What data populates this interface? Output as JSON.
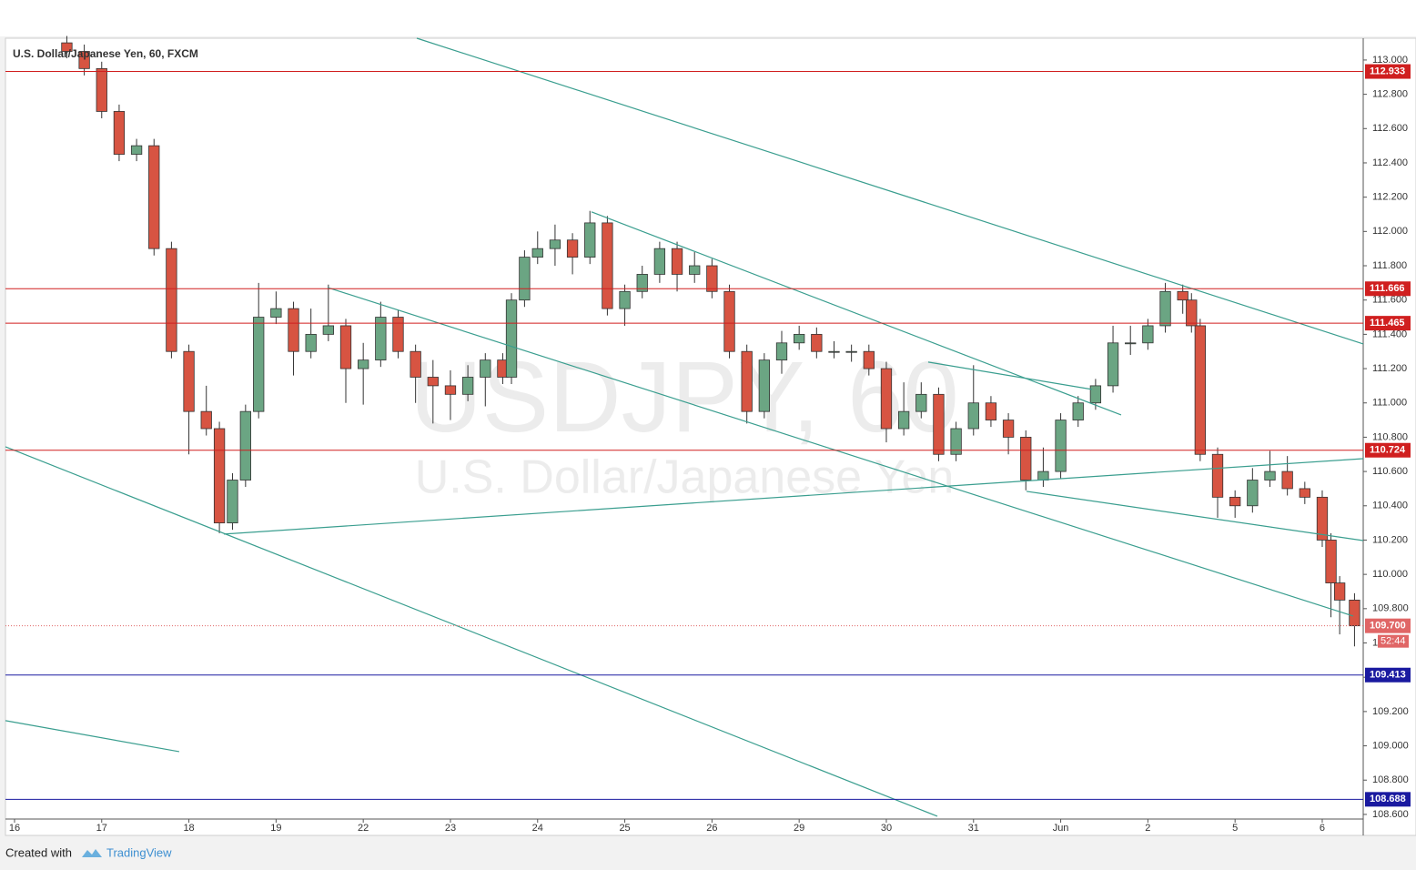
{
  "chart_data": {
    "type": "candlestick",
    "title": "U.S. Dollar/Japanese Yen, 60, FXCM",
    "watermark": [
      "USDJPY, 60",
      "U.S. Dollar/Japanese Yen"
    ],
    "up_color": "#6ba583",
    "down_color": "#d75442",
    "trend_color": "#3a9e8f",
    "xlim": [
      -0.104,
      15.47
    ],
    "xticks": [
      {
        "value": 0,
        "label": "16"
      },
      {
        "value": 1,
        "label": "17"
      },
      {
        "value": 2,
        "label": "18"
      },
      {
        "value": 3,
        "label": "19"
      },
      {
        "value": 4,
        "label": "22"
      },
      {
        "value": 5,
        "label": "23"
      },
      {
        "value": 6,
        "label": "24"
      },
      {
        "value": 7,
        "label": "25"
      },
      {
        "value": 8,
        "label": "26"
      },
      {
        "value": 9,
        "label": "29"
      },
      {
        "value": 10,
        "label": "30"
      },
      {
        "value": 11,
        "label": "31"
      },
      {
        "value": 12,
        "label": "Jun"
      },
      {
        "value": 13,
        "label": "2"
      },
      {
        "value": 14,
        "label": "5"
      },
      {
        "value": 15,
        "label": "6"
      }
    ],
    "ylim": [
      108.573,
      113.127
    ],
    "yticks": [
      {
        "value": 108.6,
        "label": "108.600"
      },
      {
        "value": 108.8,
        "label": "108.800"
      },
      {
        "value": 109.0,
        "label": "109.000"
      },
      {
        "value": 109.2,
        "label": "109.200"
      },
      {
        "value": 109.4,
        "label": "109.400"
      },
      {
        "value": 109.6,
        "label": "109.600"
      },
      {
        "value": 109.8,
        "label": "109.800"
      },
      {
        "value": 110.0,
        "label": "110.000"
      },
      {
        "value": 110.2,
        "label": "110.200"
      },
      {
        "value": 110.4,
        "label": "110.400"
      },
      {
        "value": 110.6,
        "label": "110.600"
      },
      {
        "value": 110.8,
        "label": "110.800"
      },
      {
        "value": 111.0,
        "label": "111.000"
      },
      {
        "value": 111.2,
        "label": "111.200"
      },
      {
        "value": 111.4,
        "label": "111.400"
      },
      {
        "value": 111.6,
        "label": "111.600"
      },
      {
        "value": 111.8,
        "label": "111.800"
      },
      {
        "value": 112.0,
        "label": "112.000"
      },
      {
        "value": 112.2,
        "label": "112.200"
      },
      {
        "value": 112.4,
        "label": "112.400"
      },
      {
        "value": 112.6,
        "label": "112.600"
      },
      {
        "value": 112.8,
        "label": "112.800"
      },
      {
        "value": 113.0,
        "label": "113.000"
      }
    ],
    "x": [
      0.6,
      0.8,
      1.0,
      1.2,
      1.4,
      1.6,
      1.8,
      2.0,
      2.2,
      2.35,
      2.5,
      2.65,
      2.8,
      3.0,
      3.2,
      3.4,
      3.6,
      3.8,
      4.0,
      4.2,
      4.4,
      4.6,
      4.8,
      5.0,
      5.2,
      5.4,
      5.6,
      5.7,
      5.85,
      6.0,
      6.2,
      6.4,
      6.6,
      6.8,
      7.0,
      7.2,
      7.4,
      7.6,
      7.8,
      8.0,
      8.2,
      8.4,
      8.6,
      8.8,
      9.0,
      9.2,
      9.4,
      9.6,
      9.8,
      10.0,
      10.2,
      10.4,
      10.6,
      10.8,
      11.0,
      11.2,
      11.4,
      11.6,
      11.8,
      12.0,
      12.2,
      12.4,
      12.6,
      12.8,
      13.0,
      13.2,
      13.4,
      13.5,
      13.6,
      13.8,
      14.0,
      14.2,
      14.4,
      14.6,
      14.8,
      15.0,
      15.1,
      15.2,
      15.37
    ],
    "open": [
      113.1,
      113.05,
      112.95,
      112.7,
      112.45,
      112.5,
      111.9,
      111.3,
      110.95,
      110.85,
      110.3,
      110.55,
      110.95,
      111.5,
      111.55,
      111.3,
      111.4,
      111.45,
      111.2,
      111.25,
      111.5,
      111.3,
      111.15,
      111.1,
      111.05,
      111.15,
      111.25,
      111.15,
      111.6,
      111.85,
      111.9,
      111.95,
      111.85,
      112.05,
      111.55,
      111.65,
      111.75,
      111.9,
      111.75,
      111.8,
      111.65,
      111.3,
      110.95,
      111.25,
      111.35,
      111.4,
      111.3,
      111.3,
      111.3,
      111.2,
      110.85,
      110.95,
      111.05,
      110.7,
      110.85,
      111.0,
      110.9,
      110.8,
      110.55,
      110.6,
      110.9,
      111.0,
      111.1,
      111.35,
      111.35,
      111.45,
      111.65,
      111.6,
      111.45,
      110.7,
      110.45,
      110.4,
      110.55,
      110.6,
      110.5,
      110.45,
      110.2,
      109.95,
      109.85
    ],
    "high": [
      113.14,
      113.09,
      112.99,
      112.74,
      112.54,
      112.54,
      111.94,
      111.34,
      111.1,
      110.89,
      110.59,
      110.99,
      111.7,
      111.65,
      111.59,
      111.55,
      111.69,
      111.49,
      111.35,
      111.59,
      111.54,
      111.34,
      111.25,
      111.19,
      111.22,
      111.29,
      111.29,
      111.64,
      111.89,
      112.0,
      112.04,
      111.99,
      112.12,
      112.09,
      111.69,
      111.8,
      111.94,
      111.94,
      111.88,
      111.84,
      111.69,
      111.34,
      111.29,
      111.42,
      111.45,
      111.44,
      111.36,
      111.34,
      111.34,
      111.24,
      111.12,
      111.12,
      111.09,
      110.89,
      111.22,
      111.04,
      110.94,
      110.84,
      110.74,
      110.94,
      111.04,
      111.14,
      111.45,
      111.45,
      111.49,
      111.7,
      111.69,
      111.64,
      111.49,
      110.74,
      110.49,
      110.62,
      110.72,
      110.69,
      110.54,
      110.49,
      110.24,
      109.99,
      109.89
    ],
    "low": [
      113.01,
      112.91,
      112.66,
      112.41,
      112.41,
      111.86,
      111.26,
      110.7,
      110.81,
      110.24,
      110.26,
      110.51,
      110.91,
      111.46,
      111.16,
      111.26,
      111.36,
      111.0,
      110.99,
      111.21,
      111.26,
      111.0,
      110.88,
      110.9,
      111.01,
      110.98,
      111.11,
      111.11,
      111.56,
      111.81,
      111.8,
      111.75,
      111.81,
      111.51,
      111.45,
      111.61,
      111.7,
      111.65,
      111.7,
      111.61,
      111.26,
      110.88,
      110.91,
      111.17,
      111.31,
      111.26,
      111.26,
      111.24,
      111.16,
      110.77,
      110.81,
      110.91,
      110.66,
      110.66,
      110.81,
      110.86,
      110.7,
      110.49,
      110.51,
      110.56,
      110.86,
      110.96,
      111.06,
      111.28,
      111.31,
      111.41,
      111.52,
      111.41,
      110.66,
      110.33,
      110.33,
      110.36,
      110.51,
      110.46,
      110.41,
      110.16,
      109.75,
      109.65,
      109.58
    ],
    "close": [
      113.05,
      112.95,
      112.7,
      112.45,
      112.5,
      111.9,
      111.3,
      110.95,
      110.85,
      110.3,
      110.55,
      110.95,
      111.5,
      111.55,
      111.3,
      111.4,
      111.45,
      111.2,
      111.25,
      111.5,
      111.3,
      111.15,
      111.1,
      111.05,
      111.15,
      111.25,
      111.15,
      111.6,
      111.85,
      111.9,
      111.95,
      111.85,
      112.05,
      111.55,
      111.65,
      111.75,
      111.9,
      111.75,
      111.8,
      111.65,
      111.3,
      110.95,
      111.25,
      111.35,
      111.4,
      111.3,
      111.3,
      111.3,
      111.2,
      110.85,
      110.95,
      111.05,
      110.7,
      110.85,
      111.0,
      110.9,
      110.8,
      110.55,
      110.6,
      110.9,
      111.0,
      111.1,
      111.35,
      111.35,
      111.45,
      111.65,
      111.6,
      111.45,
      110.7,
      110.45,
      110.4,
      110.55,
      110.6,
      110.5,
      110.45,
      110.2,
      109.95,
      109.85,
      109.7
    ],
    "levels": [
      {
        "value": 112.933,
        "label": "112.933",
        "color": "#d01f1f"
      },
      {
        "value": 111.666,
        "label": "111.666",
        "color": "#d01f1f"
      },
      {
        "value": 111.465,
        "label": "111.465",
        "color": "#d01f1f"
      },
      {
        "value": 110.724,
        "label": "110.724",
        "color": "#d01f1f"
      },
      {
        "value": 109.413,
        "label": "109.413",
        "color": "#1a1aa0"
      },
      {
        "value": 108.688,
        "label": "108.688",
        "color": "#1a1aa0"
      }
    ],
    "last_price": {
      "value": 109.7,
      "label": "109.700",
      "countdown": "52:44",
      "color": "#e06666"
    },
    "trendlines": [
      {
        "x": [
          4.614,
          15.47
        ],
        "y": [
          113.127,
          111.344
        ]
      },
      {
        "x": [
          -0.104,
          10.585
        ],
        "y": [
          110.744,
          108.589
        ]
      },
      {
        "x": [
          2.401,
          15.47
        ],
        "y": [
          110.235,
          110.675
        ]
      },
      {
        "x": [
          3.591,
          15.355
        ],
        "y": [
          111.673,
          109.757
        ]
      },
      {
        "x": [
          6.618,
          12.693
        ],
        "y": [
          112.114,
          110.93
        ]
      },
      {
        "x": [
          11.608,
          15.47
        ],
        "y": [
          110.484,
          110.197
        ]
      },
      {
        "x": [
          10.48,
          12.359
        ],
        "y": [
          111.238,
          111.079
        ]
      },
      {
        "x": [
          -0.104,
          1.889
        ],
        "y": [
          109.147,
          108.966
        ]
      }
    ]
  },
  "footer": {
    "created_with": "Created with",
    "brand": "TradingView"
  }
}
